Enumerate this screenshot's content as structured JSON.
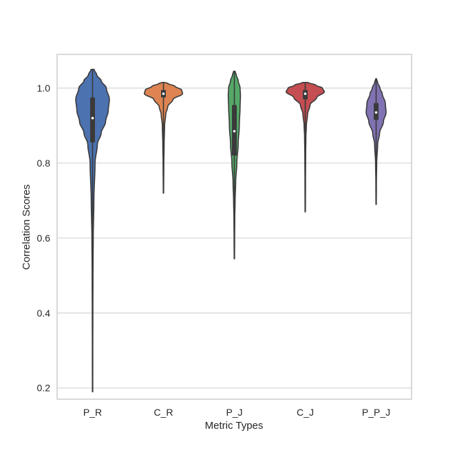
{
  "chart_data": {
    "type": "violin",
    "title": "",
    "xlabel": "Metric Types",
    "ylabel": "Correlation Scores",
    "ylim": [
      0.17,
      1.09
    ],
    "yticks": [
      0.2,
      0.4,
      0.6,
      0.8,
      1.0
    ],
    "ytick_labels": [
      "0.2",
      "0.4",
      "0.6",
      "0.8",
      "1.0"
    ],
    "grid": true,
    "categories": [
      "P_R",
      "C_R",
      "P_J",
      "C_J",
      "P_P_J"
    ],
    "series": [
      {
        "color": "#4c72b0",
        "median": 0.92,
        "q1": 0.855,
        "q3": 0.975,
        "min": 0.19,
        "max": 1.05,
        "profile": [
          [
            0.19,
            0.01
          ],
          [
            0.3,
            0.012
          ],
          [
            0.4,
            0.016
          ],
          [
            0.5,
            0.022
          ],
          [
            0.6,
            0.035
          ],
          [
            0.7,
            0.07
          ],
          [
            0.8,
            0.13
          ],
          [
            0.85,
            0.25
          ],
          [
            0.88,
            0.45
          ],
          [
            0.91,
            0.68
          ],
          [
            0.94,
            0.82
          ],
          [
            0.97,
            0.88
          ],
          [
            1.0,
            0.72
          ],
          [
            1.02,
            0.45
          ],
          [
            1.035,
            0.22
          ],
          [
            1.05,
            0.08
          ]
        ]
      },
      {
        "color": "#dd8452",
        "median": 0.985,
        "q1": 0.975,
        "q3": 0.995,
        "min": 0.72,
        "max": 1.015,
        "profile": [
          [
            0.72,
            0.01
          ],
          [
            0.8,
            0.02
          ],
          [
            0.85,
            0.035
          ],
          [
            0.9,
            0.06
          ],
          [
            0.93,
            0.12
          ],
          [
            0.95,
            0.22
          ],
          [
            0.97,
            0.5
          ],
          [
            0.985,
            1.0
          ],
          [
            0.995,
            0.95
          ],
          [
            1.005,
            0.6
          ],
          [
            1.012,
            0.25
          ],
          [
            1.015,
            0.08
          ]
        ]
      },
      {
        "color": "#55a868",
        "median": 0.885,
        "q1": 0.82,
        "q3": 0.955,
        "min": 0.545,
        "max": 1.045,
        "profile": [
          [
            0.545,
            0.01
          ],
          [
            0.6,
            0.015
          ],
          [
            0.65,
            0.022
          ],
          [
            0.7,
            0.04
          ],
          [
            0.75,
            0.07
          ],
          [
            0.8,
            0.13
          ],
          [
            0.85,
            0.2
          ],
          [
            0.9,
            0.26
          ],
          [
            0.95,
            0.3
          ],
          [
            0.98,
            0.32
          ],
          [
            1.0,
            0.3
          ],
          [
            1.02,
            0.2
          ],
          [
            1.035,
            0.1
          ],
          [
            1.045,
            0.04
          ]
        ]
      },
      {
        "color": "#c44e52",
        "median": 0.985,
        "q1": 0.97,
        "q3": 0.995,
        "min": 0.67,
        "max": 1.015,
        "profile": [
          [
            0.67,
            0.01
          ],
          [
            0.75,
            0.015
          ],
          [
            0.82,
            0.022
          ],
          [
            0.87,
            0.035
          ],
          [
            0.9,
            0.06
          ],
          [
            0.93,
            0.12
          ],
          [
            0.955,
            0.25
          ],
          [
            0.975,
            0.6
          ],
          [
            0.99,
            1.0
          ],
          [
            1.0,
            0.9
          ],
          [
            1.008,
            0.55
          ],
          [
            1.015,
            0.15
          ]
        ]
      },
      {
        "color": "#8172b3",
        "median": 0.935,
        "q1": 0.915,
        "q3": 0.96,
        "min": 0.69,
        "max": 1.025,
        "profile": [
          [
            0.69,
            0.01
          ],
          [
            0.75,
            0.015
          ],
          [
            0.8,
            0.03
          ],
          [
            0.85,
            0.08
          ],
          [
            0.88,
            0.18
          ],
          [
            0.91,
            0.38
          ],
          [
            0.935,
            0.52
          ],
          [
            0.96,
            0.48
          ],
          [
            0.985,
            0.32
          ],
          [
            1.0,
            0.2
          ],
          [
            1.015,
            0.08
          ],
          [
            1.025,
            0.02
          ]
        ]
      }
    ]
  }
}
